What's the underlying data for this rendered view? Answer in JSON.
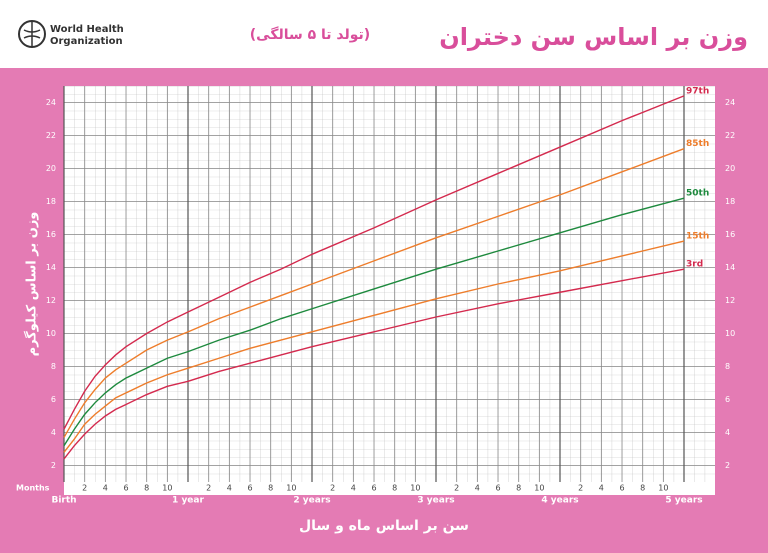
{
  "chart_data": {
    "type": "line",
    "title": "وزن بر اساس سن دختران",
    "subtitle": "(تولد تا ۵ سالگی)",
    "logo": [
      "World Health",
      "Organization"
    ],
    "ylabel": "وزن بر اساس کیلوگرم",
    "xlabel": "سن بر اساس ماه و سال",
    "x_unit_label": "Months",
    "x": [
      0,
      1,
      2,
      3,
      4,
      5,
      6,
      8,
      10,
      12,
      15,
      18,
      21,
      24,
      30,
      36,
      42,
      48,
      54,
      60
    ],
    "series": [
      {
        "name": "97th",
        "color": "#d42a4e",
        "values": [
          4.2,
          5.4,
          6.5,
          7.4,
          8.1,
          8.7,
          9.2,
          10.0,
          10.7,
          11.3,
          12.2,
          13.1,
          13.9,
          14.8,
          16.4,
          18.1,
          19.7,
          21.3,
          22.9,
          24.4
        ]
      },
      {
        "name": "85th",
        "color": "#ee7d2b",
        "values": [
          3.7,
          4.8,
          5.8,
          6.6,
          7.3,
          7.8,
          8.2,
          9.0,
          9.6,
          10.1,
          10.9,
          11.6,
          12.3,
          13.0,
          14.4,
          15.8,
          17.1,
          18.4,
          19.8,
          21.2
        ]
      },
      {
        "name": "50th",
        "color": "#1e8a3e",
        "values": [
          3.2,
          4.2,
          5.1,
          5.8,
          6.4,
          6.9,
          7.3,
          7.9,
          8.5,
          8.9,
          9.6,
          10.2,
          10.9,
          11.5,
          12.7,
          13.9,
          15.0,
          16.1,
          17.2,
          18.2
        ]
      },
      {
        "name": "15th",
        "color": "#ee7d2b",
        "values": [
          2.8,
          3.6,
          4.5,
          5.1,
          5.6,
          6.1,
          6.4,
          7.0,
          7.5,
          7.9,
          8.5,
          9.1,
          9.6,
          10.1,
          11.1,
          12.1,
          13.0,
          13.8,
          14.7,
          15.6
        ]
      },
      {
        "name": "3rd",
        "color": "#d42a4e",
        "values": [
          2.4,
          3.2,
          3.9,
          4.5,
          5.0,
          5.4,
          5.7,
          6.3,
          6.8,
          7.1,
          7.7,
          8.2,
          8.7,
          9.2,
          10.1,
          11.0,
          11.8,
          12.5,
          13.2,
          13.9
        ]
      }
    ],
    "xlim": [
      0,
      63
    ],
    "ylim": [
      1,
      25
    ],
    "xticks": [
      {
        "value": 0,
        "label": "Birth"
      },
      2,
      4,
      6,
      8,
      10,
      {
        "value": 12,
        "label": "1 year"
      },
      {
        "value": 14,
        "label": "2"
      },
      {
        "value": 16,
        "label": "4"
      },
      {
        "value": 18,
        "label": "6"
      },
      {
        "value": 20,
        "label": "8"
      },
      {
        "value": 22,
        "label": "10"
      },
      {
        "value": 24,
        "label": "2 years"
      },
      {
        "value": 26,
        "label": "2"
      },
      {
        "value": 28,
        "label": "4"
      },
      {
        "value": 30,
        "label": "6"
      },
      {
        "value": 32,
        "label": "8"
      },
      {
        "value": 34,
        "label": "10"
      },
      {
        "value": 36,
        "label": "3 years"
      },
      {
        "value": 38,
        "label": "2"
      },
      {
        "value": 40,
        "label": "4"
      },
      {
        "value": 42,
        "label": "6"
      },
      {
        "value": 44,
        "label": "8"
      },
      {
        "value": 46,
        "label": "10"
      },
      {
        "value": 48,
        "label": "4 years"
      },
      {
        "value": 50,
        "label": "2"
      },
      {
        "value": 52,
        "label": "4"
      },
      {
        "value": 54,
        "label": "6"
      },
      {
        "value": 56,
        "label": "8"
      },
      {
        "value": 58,
        "label": "10"
      },
      {
        "value": 60,
        "label": "5 years"
      }
    ],
    "yticks": [
      2,
      4,
      6,
      8,
      10,
      12,
      14,
      16,
      18,
      20,
      22,
      24
    ],
    "grid": true
  }
}
